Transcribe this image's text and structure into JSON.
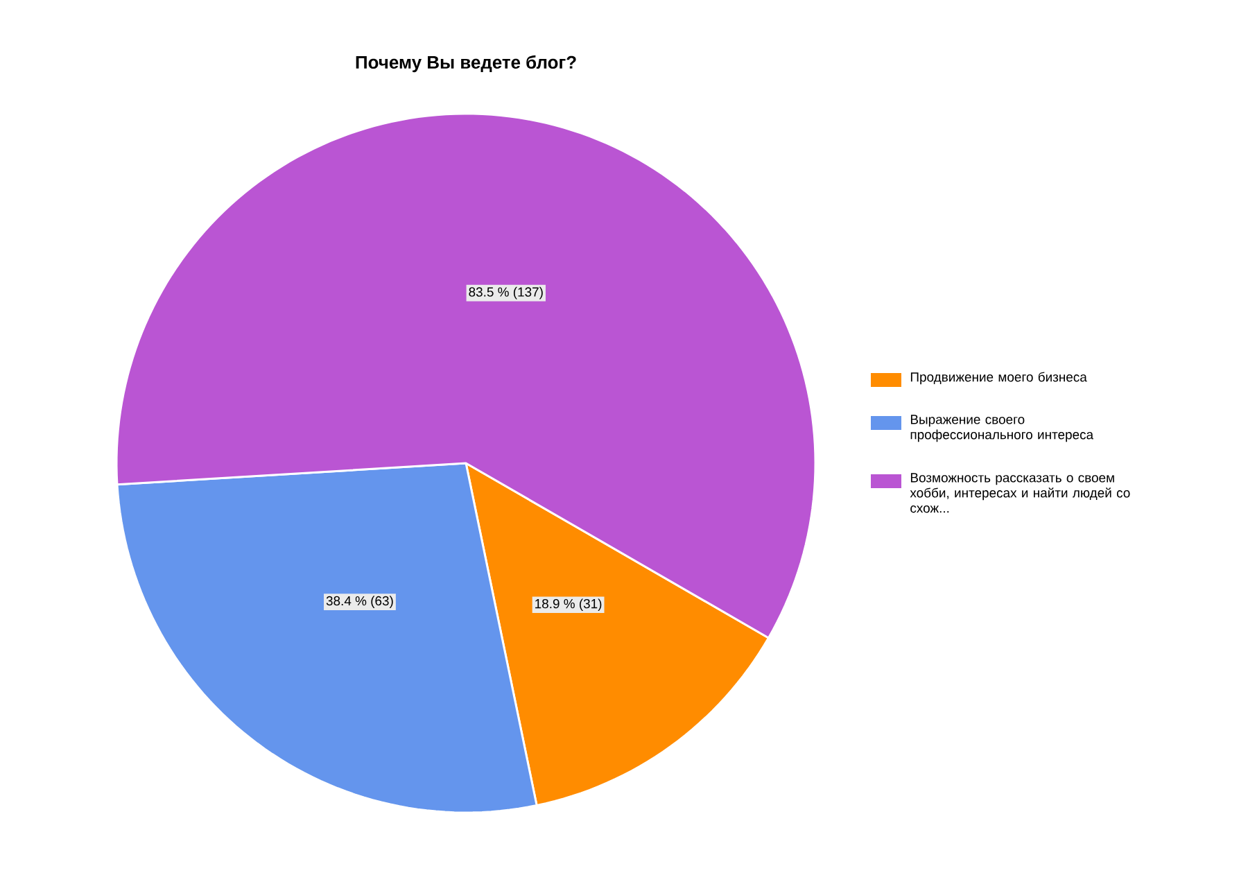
{
  "chart_data": {
    "type": "pie",
    "title": "Почему Вы ведете блог?",
    "categories": [
      "Продвижение моего бизнеса",
      "Выражение своего профессионального интереса",
      "Возможность рассказать о своем хобби, интересах и найти людей со схож..."
    ],
    "values": [
      31,
      63,
      137
    ],
    "colors": [
      "#ff8c00",
      "#6495ed",
      "#ba55d3"
    ],
    "value_labels": [
      "18.9 % (31)",
      "38.4 % (63)",
      "83.5 % (137)"
    ],
    "legend": "right"
  }
}
